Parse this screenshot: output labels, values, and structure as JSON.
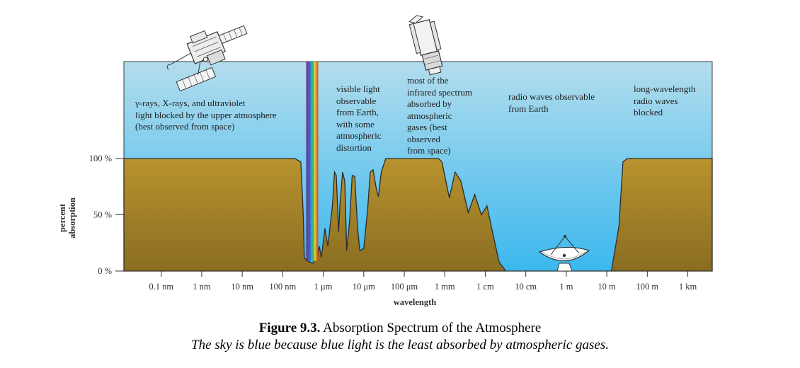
{
  "colors": {
    "sky_top": "#b3dded",
    "sky_bottom": "#3bb8ee",
    "ground_top": "#b8932e",
    "ground_bottom": "#8a6d22",
    "outline": "#2b2b2b"
  },
  "annotations": {
    "gamma": "γ-rays, X-rays, and ultraviolet\nlight blocked by the upper atmosphere\n(best observed from space)",
    "visible": "visible light\nobservable\nfrom Earth,\nwith some\natmospheric\ndistortion",
    "infrared": "most of the\ninfrared spectrum\nabsorbed by\natmospheric\ngases (best\nobserved\nfrom space)",
    "radio": "radio waves observable\nfrom Earth",
    "long_radio": "long-wavelength\nradio waves\nblocked"
  },
  "icons": {
    "satellite": "satellite-icon",
    "space_telescope": "space-telescope-icon",
    "radio_dish": "radio-dish-icon",
    "spectrum": "visible-spectrum-band"
  },
  "caption": {
    "label": "Figure 9.3.",
    "title": "Absorption Spectrum of the Atmosphere",
    "subtitle": "The sky is blue because blue light is the least absorbed by atmospheric gases."
  },
  "chart_data": {
    "type": "area",
    "xlabel": "wavelength",
    "ylabel": "percent\nabsorption",
    "x_scale": "log",
    "x_unit": "m",
    "x_ticks": [
      {
        "label": "0.1 nm",
        "value": 1e-10
      },
      {
        "label": "1 nm",
        "value": 1e-09
      },
      {
        "label": "10 nm",
        "value": 1e-08
      },
      {
        "label": "100 nm",
        "value": 1e-07
      },
      {
        "label": "1 μm",
        "value": 1e-06
      },
      {
        "label": "10 μm",
        "value": 1e-05
      },
      {
        "label": "100 μm",
        "value": 0.0001
      },
      {
        "label": "1 mm",
        "value": 0.001
      },
      {
        "label": "1 cm",
        "value": 0.01
      },
      {
        "label": "10 cm",
        "value": 0.1
      },
      {
        "label": "1 m",
        "value": 1
      },
      {
        "label": "10 m",
        "value": 10
      },
      {
        "label": "100 m",
        "value": 100
      },
      {
        "label": "1 km",
        "value": 1000
      }
    ],
    "y_ticks": [
      {
        "label": "0 %",
        "value": 0
      },
      {
        "label": "50 %",
        "value": 50
      },
      {
        "label": "100 %",
        "value": 100
      }
    ],
    "ylim": [
      0,
      100
    ],
    "xlim": [
      1.2e-11,
      4000
    ],
    "grid": false,
    "series": [
      {
        "points": [
          [
            1.2e-11,
            100
          ],
          [
            2e-07,
            100
          ],
          [
            2.8e-07,
            97
          ],
          [
            3.2e-07,
            50
          ],
          [
            3.4e-07,
            12
          ],
          [
            4e-07,
            9
          ],
          [
            5.5e-07,
            7
          ],
          [
            7e-07,
            12
          ],
          [
            8e-07,
            22
          ],
          [
            9e-07,
            12
          ],
          [
            1.1e-06,
            38
          ],
          [
            1.3e-06,
            22
          ],
          [
            1.7e-06,
            60
          ],
          [
            1.9e-06,
            88
          ],
          [
            2.1e-06,
            85
          ],
          [
            2.4e-06,
            35
          ],
          [
            2.6e-06,
            60
          ],
          [
            3e-06,
            88
          ],
          [
            3.4e-06,
            80
          ],
          [
            3.8e-06,
            18
          ],
          [
            4.5e-06,
            45
          ],
          [
            5.2e-06,
            85
          ],
          [
            6e-06,
            84
          ],
          [
            7e-06,
            40
          ],
          [
            8e-06,
            18
          ],
          [
            1e-05,
            20
          ],
          [
            1.25e-05,
            55
          ],
          [
            1.45e-05,
            88
          ],
          [
            1.7e-05,
            90
          ],
          [
            2e-05,
            75
          ],
          [
            2.3e-05,
            66
          ],
          [
            2.7e-05,
            88
          ],
          [
            3.5e-05,
            100
          ],
          [
            0.0007,
            100
          ],
          [
            0.00085,
            97
          ],
          [
            0.0013,
            65
          ],
          [
            0.0018,
            88
          ],
          [
            0.0025,
            80
          ],
          [
            0.0038,
            52
          ],
          [
            0.0055,
            68
          ],
          [
            0.008,
            50
          ],
          [
            0.011,
            58
          ],
          [
            0.015,
            35
          ],
          [
            0.022,
            8
          ],
          [
            0.032,
            0
          ],
          [
            13,
            0
          ],
          [
            20,
            40
          ],
          [
            25,
            97
          ],
          [
            32,
            100
          ],
          [
            4000,
            100
          ]
        ]
      }
    ]
  }
}
